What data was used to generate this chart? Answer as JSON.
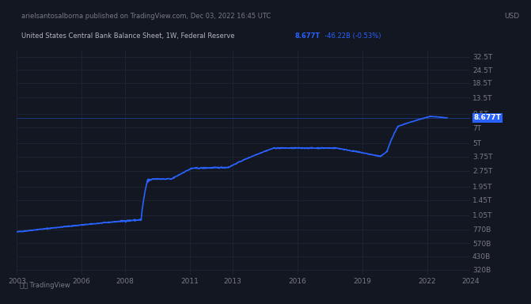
{
  "title_line1": "arielsantosalborna published on TradingView.com, Dec 03, 2022 16:45 UTC",
  "title_line2_a": "United States Central Bank Balance Sheet, 1W, Federal Reserve",
  "title_line2_b": "8.677T",
  "title_line2_c": "-46.22B (-0.53%)",
  "currency": "USD",
  "bg_color": "#131722",
  "bg_header_color": "#1a1e2d",
  "grid_color": "#1e2535",
  "line_color": "#2962ff",
  "text_color": "#787b86",
  "highlight_color": "#2962ff",
  "label_color_white": "#b2b5be",
  "ytick_labels": [
    "32.5T",
    "24.5T",
    "18.5T",
    "13.5T",
    "9.5T",
    "7T",
    "5T",
    "3.75T",
    "2.75T",
    "1.95T",
    "1.45T",
    "1.05T",
    "770B",
    "570B",
    "430B",
    "320B"
  ],
  "ytick_values": [
    32500,
    24500,
    18500,
    13500,
    9500,
    7000,
    5000,
    3750,
    2750,
    1950,
    1450,
    1050,
    770,
    570,
    430,
    320
  ],
  "xtick_labels": [
    "2003",
    "2006",
    "2008",
    "2011",
    "2013",
    "2016",
    "2019",
    "2022",
    "2024"
  ],
  "xtick_values": [
    2003,
    2006,
    2008,
    2011,
    2013,
    2016,
    2019,
    2022,
    2024
  ],
  "current_price_value": 8677,
  "current_value_str": "8.677T",
  "xmin": 2003,
  "xmax": 2024,
  "ymin": 290,
  "ymax": 38000
}
